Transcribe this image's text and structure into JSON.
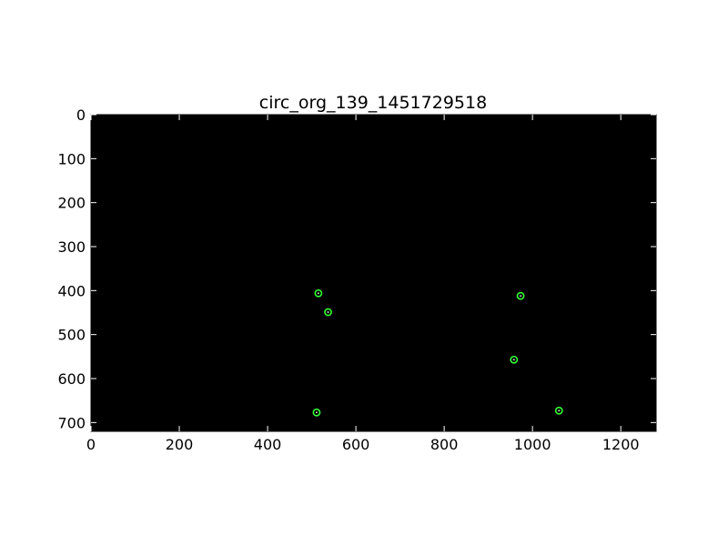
{
  "chart_data": {
    "type": "scatter",
    "title": "circ_org_139_1451729518",
    "xlabel": "",
    "ylabel": "",
    "xlim": [
      0,
      1280
    ],
    "ylim": [
      720,
      0
    ],
    "y_axis_inverted": true,
    "grid": false,
    "legend": "none",
    "background": "#000000",
    "marker": "ring",
    "colors": {
      "plot_bg": "#000000",
      "ring": "#33ff33",
      "center": "#ffffff"
    },
    "x_ticks": [
      0,
      200,
      400,
      600,
      800,
      1000,
      1200
    ],
    "x_tick_labels": [
      "0",
      "200",
      "400",
      "600",
      "800",
      "1000",
      "1200"
    ],
    "y_ticks": [
      0,
      100,
      200,
      300,
      400,
      500,
      600,
      700
    ],
    "y_tick_labels": [
      "0",
      "100",
      "200",
      "300",
      "400",
      "500",
      "600",
      "700"
    ],
    "points": [
      {
        "x": 515,
        "y": 406
      },
      {
        "x": 537,
        "y": 449
      },
      {
        "x": 973,
        "y": 412
      },
      {
        "x": 958,
        "y": 557
      },
      {
        "x": 511,
        "y": 677
      },
      {
        "x": 1060,
        "y": 673
      }
    ]
  }
}
